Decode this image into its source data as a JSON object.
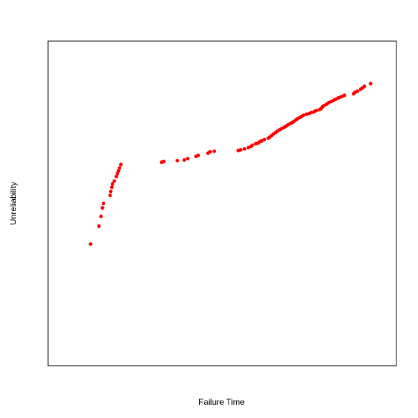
{
  "chart_data": {
    "type": "scatter",
    "title": "",
    "xlabel": "Failure Time",
    "ylabel": "Unreliability",
    "axes_ticks": "none",
    "grid": false,
    "point_color": "#ff0000",
    "xlim": [
      0,
      100
    ],
    "ylim": [
      0,
      100
    ],
    "points": [
      [
        12.2,
        37.5
      ],
      [
        14.6,
        43.0
      ],
      [
        15.2,
        46.0
      ],
      [
        15.6,
        48.6
      ],
      [
        15.9,
        50.0
      ],
      [
        17.8,
        52.5
      ],
      [
        18.0,
        53.7
      ],
      [
        18.3,
        55.0
      ],
      [
        18.5,
        56.0
      ],
      [
        19.0,
        56.9
      ],
      [
        19.6,
        58.3
      ],
      [
        19.9,
        59.2
      ],
      [
        20.2,
        60.0
      ],
      [
        20.5,
        60.9
      ],
      [
        20.9,
        62.0
      ],
      [
        32.6,
        62.7
      ],
      [
        33.2,
        62.9
      ],
      [
        37.1,
        63.2
      ],
      [
        39.1,
        63.4
      ],
      [
        40.1,
        63.8
      ],
      [
        42.5,
        64.5
      ],
      [
        43.1,
        64.8
      ],
      [
        45.9,
        65.5
      ],
      [
        46.5,
        65.9
      ],
      [
        47.7,
        66.1
      ],
      [
        54.6,
        66.3
      ],
      [
        55.3,
        66.5
      ],
      [
        56.4,
        66.8
      ],
      [
        57.5,
        67.2
      ],
      [
        58.2,
        67.5
      ],
      [
        58.6,
        67.9
      ],
      [
        59.6,
        68.4
      ],
      [
        60.3,
        68.6
      ],
      [
        60.9,
        69.1
      ],
      [
        61.4,
        69.3
      ],
      [
        62.1,
        69.7
      ],
      [
        63.2,
        70.1
      ],
      [
        63.6,
        70.4
      ],
      [
        64.2,
        70.9
      ],
      [
        64.7,
        71.4
      ],
      [
        65.3,
        71.8
      ],
      [
        65.8,
        72.3
      ],
      [
        66.5,
        72.7
      ],
      [
        67.1,
        73.1
      ],
      [
        67.8,
        73.5
      ],
      [
        68.3,
        73.8
      ],
      [
        68.9,
        74.2
      ],
      [
        69.5,
        74.6
      ],
      [
        70.1,
        74.9
      ],
      [
        70.6,
        75.3
      ],
      [
        71.2,
        75.8
      ],
      [
        71.6,
        76.1
      ],
      [
        72.3,
        76.5
      ],
      [
        72.8,
        76.8
      ],
      [
        73.4,
        77.2
      ],
      [
        74.2,
        77.5
      ],
      [
        75.0,
        77.7
      ],
      [
        75.6,
        78.0
      ],
      [
        76.4,
        78.3
      ],
      [
        77.0,
        78.6
      ],
      [
        77.9,
        78.9
      ],
      [
        78.4,
        79.2
      ],
      [
        78.8,
        79.8
      ],
      [
        79.3,
        80.2
      ],
      [
        80.0,
        80.6
      ],
      [
        80.6,
        81.0
      ],
      [
        81.3,
        81.4
      ],
      [
        82.0,
        81.8
      ],
      [
        82.6,
        82.1
      ],
      [
        83.3,
        82.5
      ],
      [
        84.0,
        82.8
      ],
      [
        84.5,
        83.0
      ],
      [
        85.1,
        83.3
      ],
      [
        87.7,
        83.8
      ],
      [
        88.1,
        84.2
      ],
      [
        88.8,
        84.6
      ],
      [
        89.7,
        85.2
      ],
      [
        90.3,
        85.6
      ],
      [
        90.8,
        86.1
      ],
      [
        92.6,
        86.9
      ]
    ]
  }
}
